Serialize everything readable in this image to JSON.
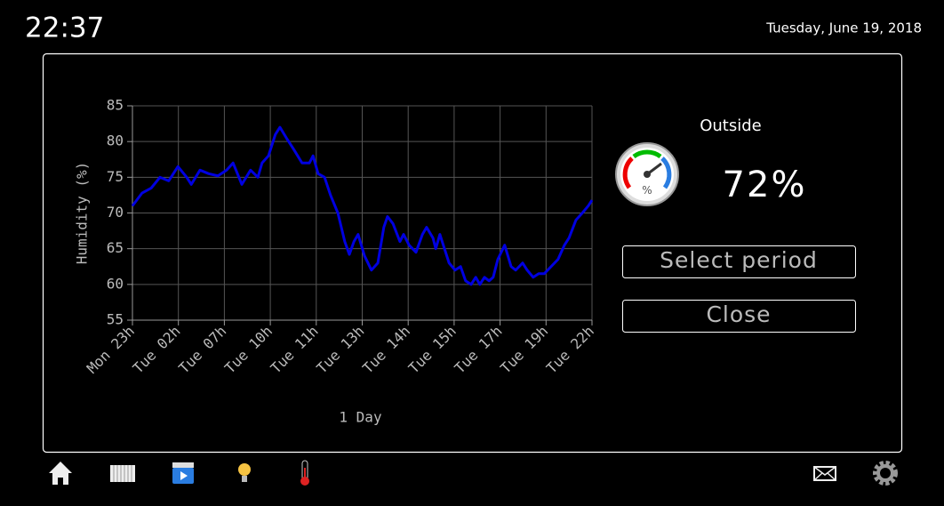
{
  "header": {
    "time": "22:37",
    "date": "Tuesday, June 19, 2018"
  },
  "chart_data": {
    "type": "line",
    "ylabel": "Humidity (%)",
    "xlabel": "1 Day",
    "color": "#0000e0",
    "grid": true,
    "xlim": [
      0,
      10
    ],
    "xticks": [
      {
        "value": 0,
        "label": "Mon 23h"
      },
      {
        "value": 1,
        "label": "Tue 02h"
      },
      {
        "value": 2,
        "label": "Tue 07h"
      },
      {
        "value": 3,
        "label": "Tue 10h"
      },
      {
        "value": 4,
        "label": "Tue 11h"
      },
      {
        "value": 5,
        "label": "Tue 13h"
      },
      {
        "value": 6,
        "label": "Tue 14h"
      },
      {
        "value": 7,
        "label": "Tue 15h"
      },
      {
        "value": 8,
        "label": "Tue 17h"
      },
      {
        "value": 9,
        "label": "Tue 19h"
      },
      {
        "value": 10,
        "label": "Tue 22h"
      }
    ],
    "ylim": [
      55,
      85
    ],
    "yticks": [
      55,
      60,
      65,
      70,
      75,
      80,
      85
    ],
    "x": [
      0,
      0.21,
      0.41,
      0.6,
      0.79,
      0.99,
      1.18,
      1.28,
      1.47,
      1.66,
      1.86,
      2.05,
      2.19,
      2.38,
      2.57,
      2.73,
      2.82,
      2.96,
      3.11,
      3.21,
      3.35,
      3.5,
      3.69,
      3.85,
      3.93,
      4.04,
      4.18,
      4.31,
      4.47,
      4.62,
      4.72,
      4.82,
      4.91,
      5.05,
      5.2,
      5.34,
      5.47,
      5.55,
      5.67,
      5.82,
      5.9,
      6.02,
      6.17,
      6.31,
      6.4,
      6.54,
      6.6,
      6.69,
      6.79,
      6.89,
      7.02,
      7.14,
      7.25,
      7.37,
      7.47,
      7.56,
      7.66,
      7.76,
      7.85,
      7.95,
      8.1,
      8.24,
      8.34,
      8.49,
      8.59,
      8.72,
      8.84,
      8.96,
      9.11,
      9.26,
      9.4,
      9.5,
      9.65,
      9.79,
      9.92,
      10
    ],
    "values": [
      71,
      72.8,
      73.5,
      75,
      74.5,
      76.5,
      75,
      74,
      76,
      75.5,
      75.2,
      76,
      77,
      74,
      76,
      75,
      77,
      78,
      81,
      82,
      80.5,
      79,
      77,
      77,
      78,
      75.5,
      75,
      72.5,
      70,
      66,
      64.2,
      66,
      67,
      64,
      62,
      63,
      68,
      69.5,
      68.5,
      66,
      67,
      65.5,
      64.5,
      67,
      68,
      66.5,
      65,
      67,
      65,
      63,
      62,
      62.5,
      60.5,
      60,
      61,
      60,
      61,
      60.5,
      61,
      63.5,
      65.5,
      62.5,
      62,
      63,
      62,
      61,
      61.5,
      61.5,
      62.5,
      63.5,
      65.5,
      66.5,
      69,
      70,
      71,
      71.8
    ]
  },
  "panel": {
    "location": "Outside",
    "reading": "72%",
    "buttons": [
      "Select period",
      "Close"
    ]
  }
}
